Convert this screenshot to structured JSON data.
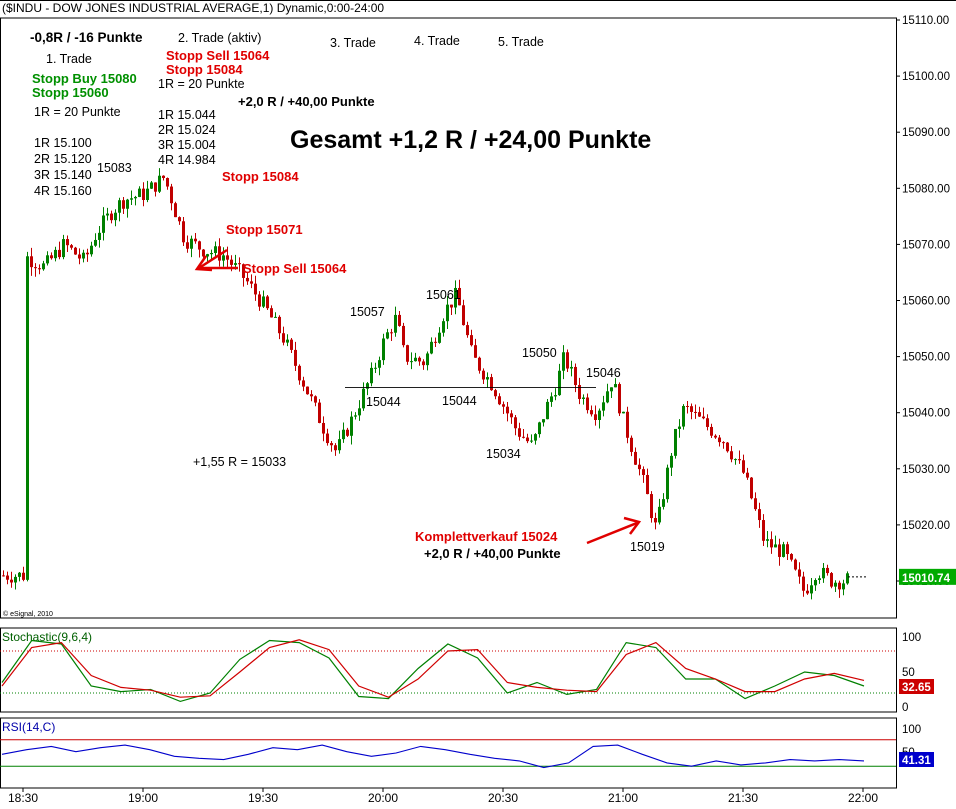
{
  "header": {
    "title": "($INDU - DOW JONES INDUSTRIAL AVERAGE,1) Dynamic,0:00-24:00"
  },
  "headline": "Gesamt +1,2 R / +24,00 Punkte",
  "copyright": "© eSignal, 2010",
  "trades": {
    "t1_result": "-0,8R / -16 Punkte",
    "t1_label": "1. Trade",
    "t1_stop_buy": "Stopp Buy 15080",
    "t1_stop": "Stopp 15060",
    "t1_r": "1R = 20 Punkte",
    "t1_targets": [
      "1R 15.100",
      "2R 15.120",
      "3R 15.140",
      "4R 15.160"
    ],
    "t2_label": "2. Trade (aktiv)",
    "t2_stop_sell": "Stopp Sell 15064",
    "t2_stop": "Stopp 15084",
    "t2_r": "1R = 20 Punkte",
    "t2_targets": [
      "1R 15.044",
      "2R 15.024",
      "3R 15.004",
      "4R 14.984"
    ],
    "t2_result": "+2,0 R / +40,00 Punkte",
    "t3_label": "3. Trade",
    "t4_label": "4. Trade",
    "t5_label": "5. Trade"
  },
  "annotations": {
    "stopp_15084": "Stopp 15084",
    "stopp_15071": "Stopp 15071",
    "stopp_sell_15064": "Stopp Sell 15064",
    "r155": "+1,55 R = 15033",
    "verkauf": "Komplettverkauf 15024",
    "verkauf_result": "+2,0 R / +40,00 Punkte",
    "price_labels": [
      "15083",
      "15057",
      "15061",
      "15044",
      "15044",
      "15050",
      "15046",
      "15034",
      "15019"
    ]
  },
  "colors": {
    "up": "#008000",
    "down": "#c00000",
    "red_text": "#e00000",
    "green_text": "#009000",
    "stoch_k": "#008000",
    "stoch_d": "#d00000",
    "rsi": "#0000cc",
    "last_price_bg": "#00aa00",
    "stoch_badge_bg": "#cc0000",
    "rsi_badge_bg": "#0000cc"
  },
  "last_price": "15010.74",
  "chart_data": {
    "type": "candlestick",
    "title": "($INDU - DOW JONES INDUSTRIAL AVERAGE,1) Dynamic,0:00-24:00",
    "x_tick_labels": [
      "18:30",
      "19:00",
      "19:30",
      "20:00",
      "20:30",
      "21:00",
      "21:30",
      "22:00"
    ],
    "y_tick_labels": [
      "15110.00",
      "15100.00",
      "15090.00",
      "15080.00",
      "15070.00",
      "15060.00",
      "15050.00",
      "15040.00",
      "15030.00",
      "15020.00",
      "15010.00"
    ],
    "ylim": [
      15003,
      15115
    ],
    "support_line": 15044.5,
    "close_path": [
      [
        "18:30",
        15068
      ],
      [
        "18:35",
        15066
      ],
      [
        "18:40",
        15070
      ],
      [
        "18:45",
        15067
      ],
      [
        "18:48",
        15072
      ],
      [
        "18:52",
        15076
      ],
      [
        "18:55",
        15078
      ],
      [
        "19:00",
        15079
      ],
      [
        "19:05",
        15082
      ],
      [
        "19:10",
        15071
      ],
      [
        "19:15",
        15069
      ],
      [
        "19:20",
        15068
      ],
      [
        "19:25",
        15064
      ],
      [
        "19:30",
        15059
      ],
      [
        "19:35",
        15053
      ],
      [
        "19:40",
        15045
      ],
      [
        "19:45",
        15037
      ],
      [
        "19:48",
        15033
      ],
      [
        "19:52",
        15039
      ],
      [
        "19:57",
        15047
      ],
      [
        "20:00",
        15053
      ],
      [
        "20:03",
        15057
      ],
      [
        "20:05",
        15050
      ],
      [
        "20:10",
        15049
      ],
      [
        "20:15",
        15058
      ],
      [
        "20:18",
        15061
      ],
      [
        "20:22",
        15050
      ],
      [
        "20:27",
        15045
      ],
      [
        "20:33",
        15037
      ],
      [
        "20:37",
        15034
      ],
      [
        "20:40",
        15040
      ],
      [
        "20:43",
        15045
      ],
      [
        "20:45",
        15050
      ],
      [
        "20:49",
        15043
      ],
      [
        "20:53",
        15040
      ],
      [
        "20:57",
        15046
      ],
      [
        "21:00",
        15038
      ],
      [
        "21:05",
        15027
      ],
      [
        "21:08",
        15019
      ],
      [
        "21:12",
        15034
      ],
      [
        "21:15",
        15041
      ],
      [
        "21:20",
        15038
      ],
      [
        "21:25",
        15035
      ],
      [
        "21:30",
        15029
      ],
      [
        "21:35",
        15017
      ],
      [
        "21:40",
        15015
      ],
      [
        "21:45",
        15008
      ],
      [
        "21:48",
        15012
      ],
      [
        "21:52",
        15010
      ],
      [
        "21:55",
        15010
      ],
      [
        "21:58",
        15011
      ]
    ],
    "stochastic": {
      "name": "Stochastic(9,6,4)",
      "ylim": [
        0,
        100
      ],
      "ticks": [
        "100",
        "50",
        "0"
      ],
      "last_value": "32.65",
      "k": [
        35,
        95,
        90,
        30,
        22,
        25,
        8,
        20,
        68,
        95,
        92,
        70,
        15,
        12,
        55,
        90,
        70,
        20,
        35,
        18,
        25,
        92,
        85,
        40,
        40,
        12,
        30,
        50,
        45,
        30
      ],
      "d": [
        30,
        85,
        92,
        45,
        28,
        24,
        14,
        16,
        50,
        85,
        96,
        82,
        30,
        14,
        40,
        80,
        82,
        35,
        28,
        24,
        22,
        75,
        92,
        55,
        40,
        22,
        22,
        40,
        48,
        38
      ]
    },
    "rsi": {
      "name": "RSI(14,C)",
      "ylim": [
        0,
        100
      ],
      "ticks": [
        "100",
        "50"
      ],
      "last_value": "41.31",
      "overbought": 70,
      "oversold": 30,
      "values": [
        48,
        55,
        60,
        52,
        58,
        62,
        55,
        45,
        42,
        40,
        48,
        58,
        55,
        62,
        52,
        45,
        50,
        60,
        55,
        48,
        42,
        38,
        28,
        35,
        60,
        62,
        48,
        35,
        30,
        38,
        32,
        35,
        40,
        38,
        40,
        38
      ]
    }
  }
}
